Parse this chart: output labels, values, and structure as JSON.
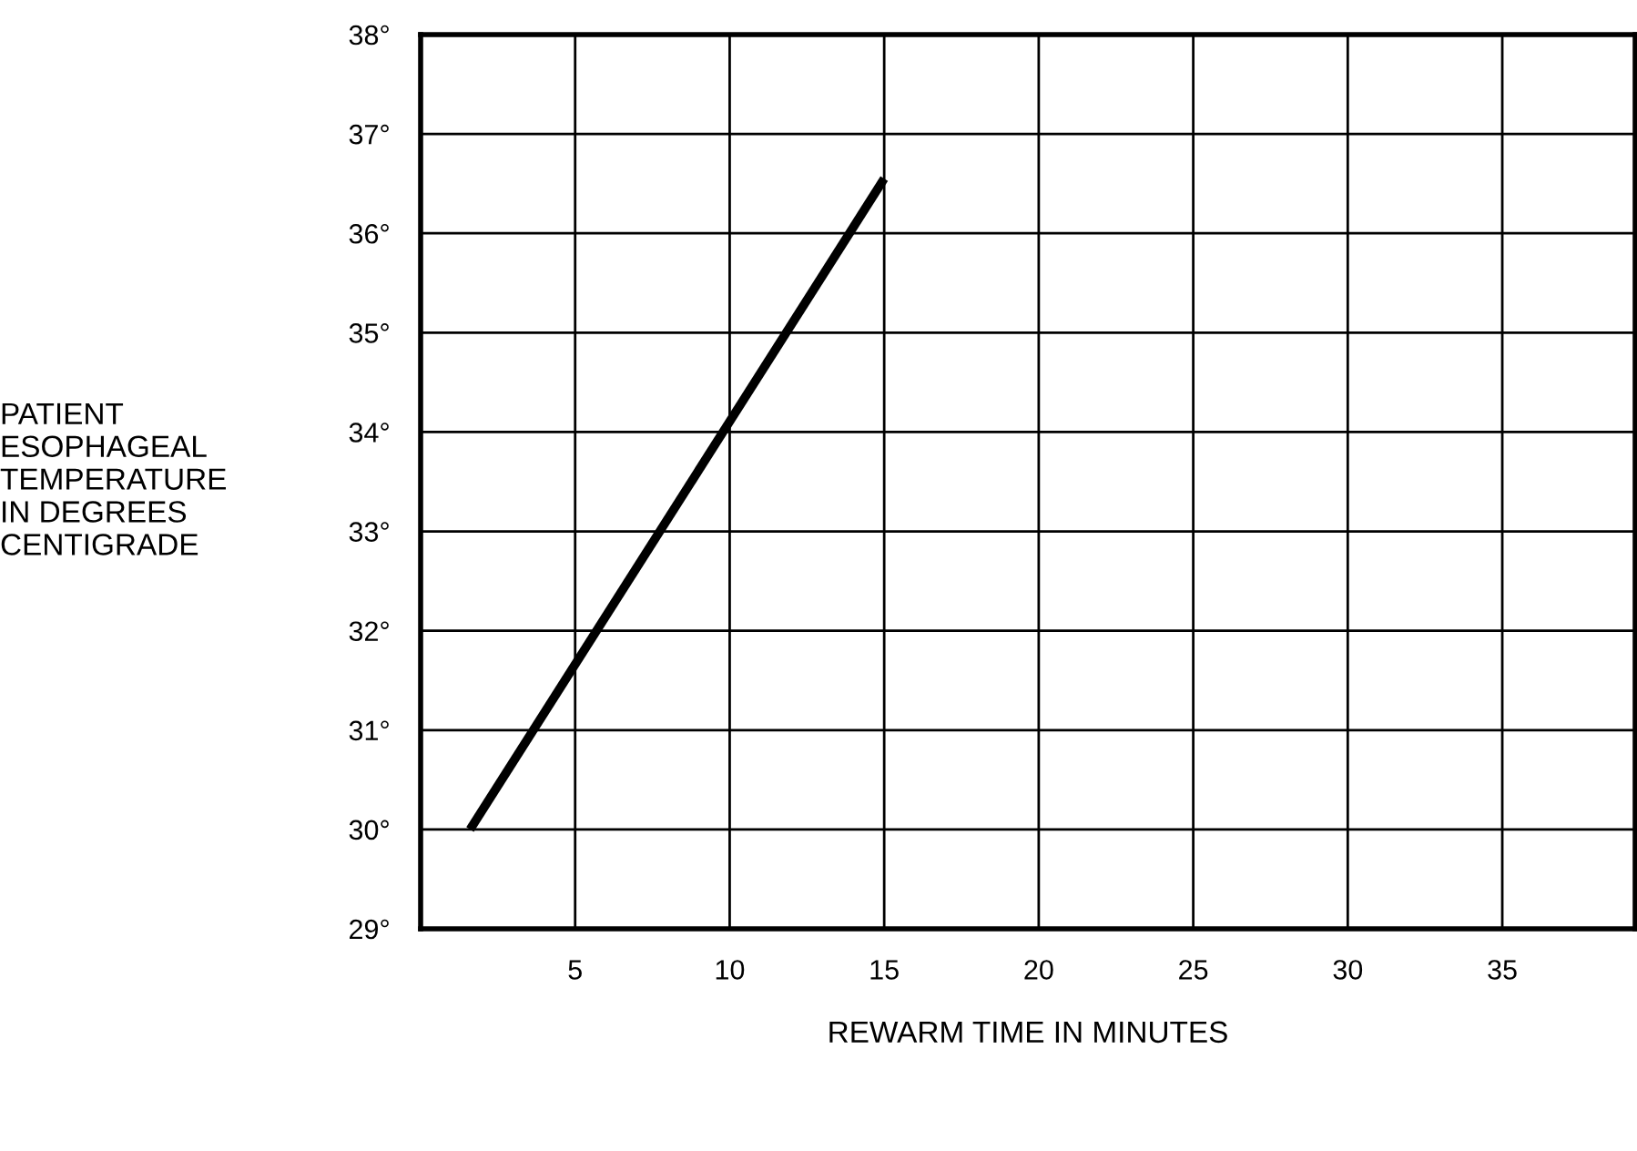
{
  "chart_data": {
    "type": "line",
    "xlabel": "REWARM TIME IN MINUTES",
    "ylabel": "PATIENT\nESOPHAGEAL\nTEMPERATURE\nIN DEGREES\nCENTIGRADE",
    "x": [
      1.6,
      15
    ],
    "values": [
      30,
      36.55
    ],
    "color": "#000000",
    "xlim": [
      0,
      39.3
    ],
    "xticks": [
      5,
      10,
      15,
      20,
      25,
      30,
      35
    ],
    "ylim": [
      29,
      38
    ],
    "yticks": [
      {
        "value": 29,
        "label": "29°"
      },
      {
        "value": 30,
        "label": "30°"
      },
      {
        "value": 31,
        "label": "31°"
      },
      {
        "value": 32,
        "label": "32°"
      },
      {
        "value": 33,
        "label": "33°"
      },
      {
        "value": 34,
        "label": "34°"
      },
      {
        "value": 35,
        "label": "35°"
      },
      {
        "value": 36,
        "label": "36°"
      },
      {
        "value": 37,
        "label": "37°"
      },
      {
        "value": 38,
        "label": "38°"
      }
    ],
    "grid": true,
    "marker": "none",
    "line_style": "solid"
  }
}
